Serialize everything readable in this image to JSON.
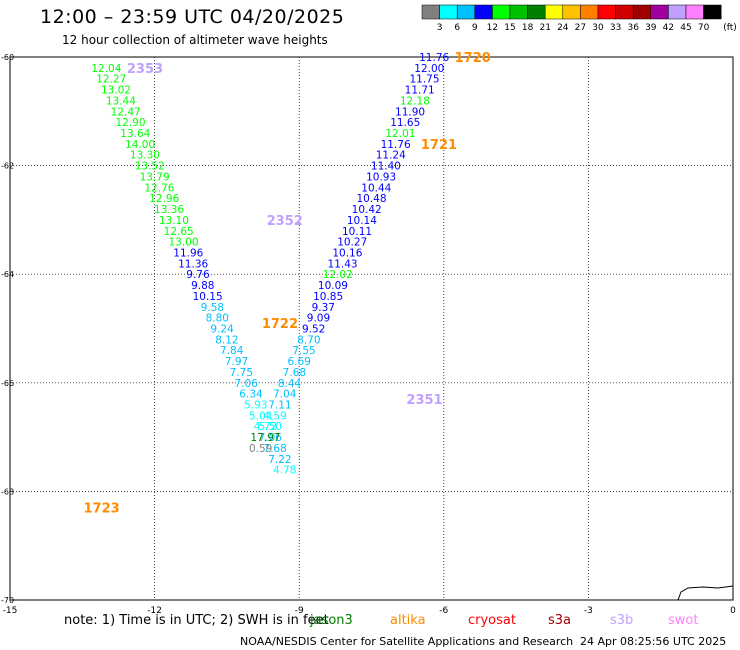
{
  "title": "12:00 – 23:59 UTC 04/20/2025",
  "subtitle": "12 hour collection of altimeter wave heights",
  "legend": {
    "unit": "(ft)",
    "ticks": [
      "3",
      "6",
      "9",
      "12",
      "15",
      "18",
      "21",
      "24",
      "27",
      "30",
      "33",
      "36",
      "39",
      "42",
      "45",
      "70"
    ],
    "colors": [
      "#808080",
      "#00ffff",
      "#00bfff",
      "#0000ff",
      "#00ff00",
      "#00c000",
      "#008000",
      "#ffff00",
      "#ffc000",
      "#ff8000",
      "#ff0000",
      "#d00000",
      "#a00000",
      "#a000a0",
      "#c0a0ff",
      "#ff80ff",
      "#000000"
    ]
  },
  "note": "note: 1) Time is in UTC; 2) SWH is in feet",
  "satellites": [
    {
      "name": "jason3",
      "color": "#008000"
    },
    {
      "name": "altika",
      "color": "#ff8c00"
    },
    {
      "name": "cryosat",
      "color": "#ff0000"
    },
    {
      "name": "s3a",
      "color": "#a00000"
    },
    {
      "name": "s3b",
      "color": "#c0a0ff"
    },
    {
      "name": "swot",
      "color": "#ff80ff"
    }
  ],
  "credit": "NOAA/NESDIS Center for Satellite Applications and Research",
  "credit_date": "24 Apr 08:25:56 UTC 2025",
  "chart_data": {
    "type": "scatter",
    "xlim": [
      -15,
      0
    ],
    "ylim": [
      -70,
      -60
    ],
    "x_ticks": [
      -15,
      -12,
      -9,
      -6,
      -3,
      0
    ],
    "y_ticks": [
      -60,
      -62,
      -64,
      -66,
      -68,
      -70
    ],
    "x_tick_labels": [
      "-15",
      "-12",
      "-9",
      "-6",
      "-3",
      "0"
    ],
    "y_tick_labels": [
      "-60",
      "-62",
      "-64",
      "-66",
      "-68",
      "-70"
    ],
    "grid": true,
    "track_labels": [
      {
        "text": "2353",
        "x": -12.2,
        "y": -60.2,
        "color": "#c0a0ff"
      },
      {
        "text": "1720",
        "x": -5.4,
        "y": -60.0,
        "color": "#ff8c00"
      },
      {
        "text": "1721",
        "x": -6.1,
        "y": -61.6,
        "color": "#ff8c00"
      },
      {
        "text": "2352",
        "x": -9.3,
        "y": -63.0,
        "color": "#c0a0ff"
      },
      {
        "text": "1722",
        "x": -9.4,
        "y": -64.9,
        "color": "#ff8c00"
      },
      {
        "text": "2351",
        "x": -6.4,
        "y": -66.3,
        "color": "#c0a0ff"
      },
      {
        "text": "1723",
        "x": -13.1,
        "y": -68.3,
        "color": "#ff8c00"
      }
    ],
    "series": [
      {
        "name": "2353",
        "points": [
          {
            "x": -13.0,
            "y": -60.2,
            "v": "12.04",
            "c": "#00ff00"
          },
          {
            "x": -12.9,
            "y": -60.4,
            "v": "12.27",
            "c": "#00ff00"
          },
          {
            "x": -12.8,
            "y": -60.6,
            "v": "13.02",
            "c": "#00ff00"
          },
          {
            "x": -12.7,
            "y": -60.8,
            "v": "13.44",
            "c": "#00ff00"
          },
          {
            "x": -12.6,
            "y": -61.0,
            "v": "12.47",
            "c": "#00ff00"
          },
          {
            "x": -12.5,
            "y": -61.2,
            "v": "12.90",
            "c": "#00ff00"
          },
          {
            "x": -12.4,
            "y": -61.4,
            "v": "13.64",
            "c": "#00ff00"
          },
          {
            "x": -12.3,
            "y": -61.6,
            "v": "14.00",
            "c": "#00ff00"
          },
          {
            "x": -12.2,
            "y": -61.8,
            "v": "13.30",
            "c": "#00ff00"
          },
          {
            "x": -12.1,
            "y": -62.0,
            "v": "13.52",
            "c": "#00ff00"
          },
          {
            "x": -12.0,
            "y": -62.2,
            "v": "13.79",
            "c": "#00ff00"
          },
          {
            "x": -11.9,
            "y": -62.4,
            "v": "12.76",
            "c": "#00ff00"
          },
          {
            "x": -11.8,
            "y": -62.6,
            "v": "12.96",
            "c": "#00ff00"
          },
          {
            "x": -11.7,
            "y": -62.8,
            "v": "13.36",
            "c": "#00ff00"
          },
          {
            "x": -11.6,
            "y": -63.0,
            "v": "13.10",
            "c": "#00ff00"
          },
          {
            "x": -11.5,
            "y": -63.2,
            "v": "12.65",
            "c": "#00ff00"
          },
          {
            "x": -11.4,
            "y": -63.4,
            "v": "13.00",
            "c": "#00ff00"
          },
          {
            "x": -11.3,
            "y": -63.6,
            "v": "11.96",
            "c": "#0000ff"
          },
          {
            "x": -11.2,
            "y": -63.8,
            "v": "11.36",
            "c": "#0000ff"
          },
          {
            "x": -11.1,
            "y": -64.0,
            "v": "9.76",
            "c": "#0000ff"
          },
          {
            "x": -11.0,
            "y": -64.2,
            "v": "9.88",
            "c": "#0000ff"
          },
          {
            "x": -10.9,
            "y": -64.4,
            "v": "10.15",
            "c": "#0000ff"
          },
          {
            "x": -10.8,
            "y": -64.6,
            "v": "9.58",
            "c": "#00bfff"
          },
          {
            "x": -10.7,
            "y": -64.8,
            "v": "8.80",
            "c": "#00bfff"
          },
          {
            "x": -10.6,
            "y": -65.0,
            "v": "9.24",
            "c": "#00bfff"
          },
          {
            "x": -10.5,
            "y": -65.2,
            "v": "8.12",
            "c": "#00bfff"
          },
          {
            "x": -10.4,
            "y": -65.4,
            "v": "7.84",
            "c": "#00bfff"
          },
          {
            "x": -10.3,
            "y": -65.6,
            "v": "7.97",
            "c": "#00bfff"
          },
          {
            "x": -10.2,
            "y": -65.8,
            "v": "7.75",
            "c": "#00bfff"
          },
          {
            "x": -10.1,
            "y": -66.0,
            "v": "7.06",
            "c": "#00bfff"
          },
          {
            "x": -10.0,
            "y": -66.2,
            "v": "6.34",
            "c": "#00bfff"
          },
          {
            "x": -9.9,
            "y": -66.4,
            "v": "5.93",
            "c": "#00ffff"
          },
          {
            "x": -9.8,
            "y": -66.6,
            "v": "5.04",
            "c": "#00ffff"
          },
          {
            "x": -9.7,
            "y": -66.8,
            "v": "4.72",
            "c": "#00ffff"
          },
          {
            "x": -9.6,
            "y": -67.0,
            "v": "7.06",
            "c": "#00bfff"
          },
          {
            "x": -9.5,
            "y": -67.2,
            "v": "7.68",
            "c": "#00bfff"
          },
          {
            "x": -9.4,
            "y": -67.4,
            "v": "7.22",
            "c": "#00bfff"
          },
          {
            "x": -9.3,
            "y": -67.6,
            "v": "4.78",
            "c": "#00ffff"
          }
        ]
      },
      {
        "name": "1720",
        "points": [
          {
            "x": -6.2,
            "y": -60.0,
            "v": "11.76",
            "c": "#0000ff"
          },
          {
            "x": -6.3,
            "y": -60.2,
            "v": "12.00",
            "c": "#0000ff"
          },
          {
            "x": -6.4,
            "y": -60.4,
            "v": "11.75",
            "c": "#0000ff"
          },
          {
            "x": -6.5,
            "y": -60.6,
            "v": "11.71",
            "c": "#0000ff"
          },
          {
            "x": -6.6,
            "y": -60.8,
            "v": "12.18",
            "c": "#00ff00"
          },
          {
            "x": -6.7,
            "y": -61.0,
            "v": "11.90",
            "c": "#0000ff"
          },
          {
            "x": -6.8,
            "y": -61.2,
            "v": "11.65",
            "c": "#0000ff"
          },
          {
            "x": -6.9,
            "y": -61.4,
            "v": "12.01",
            "c": "#00ff00"
          },
          {
            "x": -7.0,
            "y": -61.6,
            "v": "11.76",
            "c": "#0000ff"
          },
          {
            "x": -7.1,
            "y": -61.8,
            "v": "11.24",
            "c": "#0000ff"
          },
          {
            "x": -7.2,
            "y": -62.0,
            "v": "11.40",
            "c": "#0000ff"
          },
          {
            "x": -7.3,
            "y": -62.2,
            "v": "10.93",
            "c": "#0000ff"
          },
          {
            "x": -7.4,
            "y": -62.4,
            "v": "10.44",
            "c": "#0000ff"
          },
          {
            "x": -7.5,
            "y": -62.6,
            "v": "10.48",
            "c": "#0000ff"
          },
          {
            "x": -7.6,
            "y": -62.8,
            "v": "10.42",
            "c": "#0000ff"
          },
          {
            "x": -7.7,
            "y": -63.0,
            "v": "10.14",
            "c": "#0000ff"
          },
          {
            "x": -7.8,
            "y": -63.2,
            "v": "10.11",
            "c": "#0000ff"
          },
          {
            "x": -7.9,
            "y": -63.4,
            "v": "10.27",
            "c": "#0000ff"
          },
          {
            "x": -8.0,
            "y": -63.6,
            "v": "10.16",
            "c": "#0000ff"
          },
          {
            "x": -8.1,
            "y": -63.8,
            "v": "11.43",
            "c": "#0000ff"
          },
          {
            "x": -8.2,
            "y": -64.0,
            "v": "12.02",
            "c": "#00ff00"
          },
          {
            "x": -8.3,
            "y": -64.2,
            "v": "10.09",
            "c": "#0000ff"
          },
          {
            "x": -8.4,
            "y": -64.4,
            "v": "10.85",
            "c": "#0000ff"
          },
          {
            "x": -8.5,
            "y": -64.6,
            "v": "9.37",
            "c": "#0000ff"
          },
          {
            "x": -8.6,
            "y": -64.8,
            "v": "9.09",
            "c": "#0000ff"
          },
          {
            "x": -8.7,
            "y": -65.0,
            "v": "9.52",
            "c": "#0000ff"
          },
          {
            "x": -8.8,
            "y": -65.2,
            "v": "8.70",
            "c": "#00bfff"
          },
          {
            "x": -8.9,
            "y": -65.4,
            "v": "7.55",
            "c": "#00bfff"
          },
          {
            "x": -9.0,
            "y": -65.6,
            "v": "6.69",
            "c": "#00bfff"
          },
          {
            "x": -9.1,
            "y": -65.8,
            "v": "7.68",
            "c": "#00bfff"
          },
          {
            "x": -9.2,
            "y": -66.0,
            "v": "8.44",
            "c": "#00bfff"
          },
          {
            "x": -9.3,
            "y": -66.2,
            "v": "7.04",
            "c": "#00bfff"
          },
          {
            "x": -9.4,
            "y": -66.4,
            "v": "7.11",
            "c": "#00bfff"
          },
          {
            "x": -9.5,
            "y": -66.6,
            "v": "4.59",
            "c": "#00ffff"
          },
          {
            "x": -9.6,
            "y": -66.8,
            "v": "5.50",
            "c": "#00ffff"
          },
          {
            "x": -9.7,
            "y": -67.0,
            "v": "17.97",
            "c": "#008000"
          },
          {
            "x": -9.8,
            "y": -67.2,
            "v": "0.59",
            "c": "#808080"
          }
        ]
      }
    ]
  }
}
